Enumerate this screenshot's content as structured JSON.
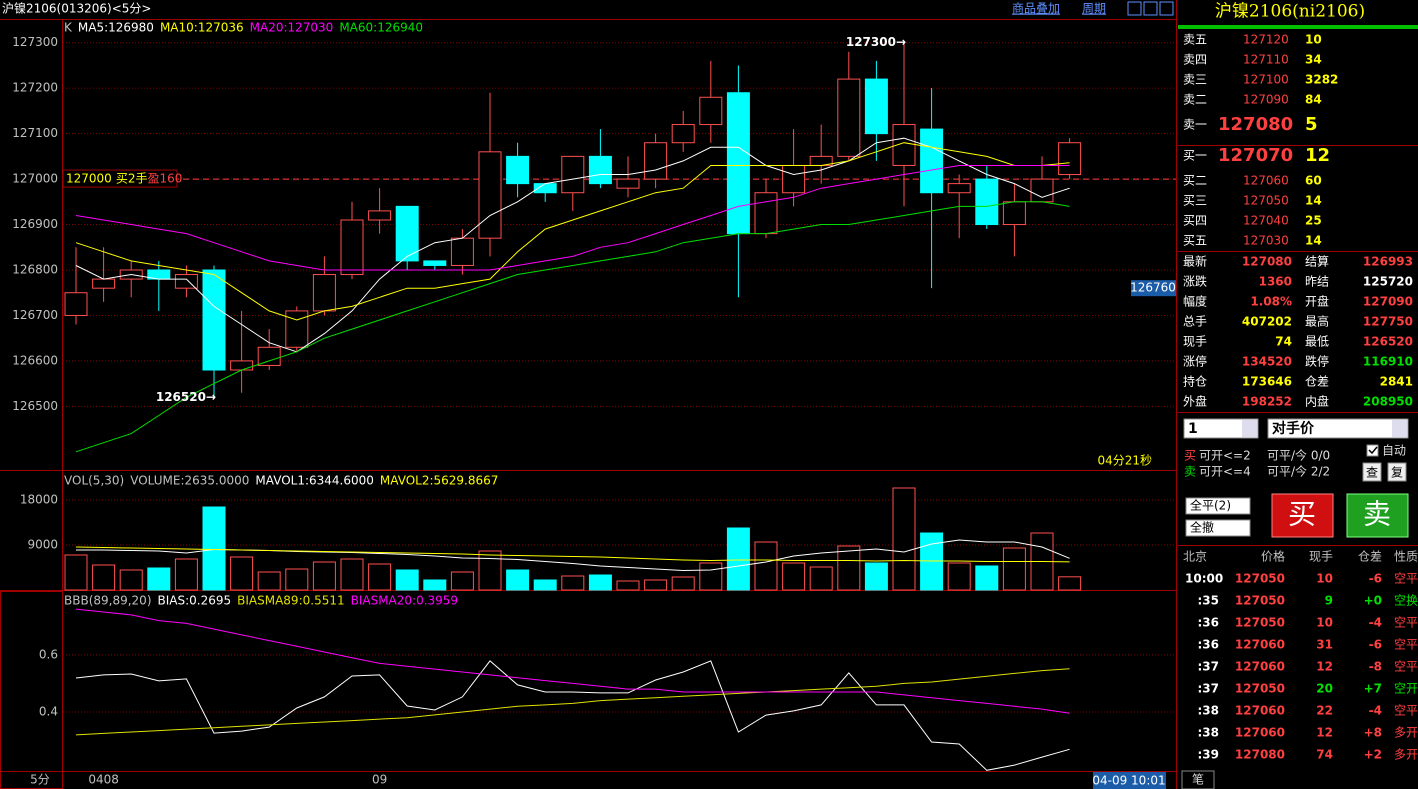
{
  "header": {
    "title": "沪镍2106(013206)<5分>",
    "overlay": "商品叠加",
    "period": "周期"
  },
  "kline": {
    "type": "candlestick",
    "label": "K",
    "up_color": "#ff5050",
    "down_color": "#00ffff",
    "open": [
      126700,
      126760,
      126780,
      126800,
      126760,
      126800,
      126580,
      126590,
      126630,
      126710,
      126790,
      126910,
      126940,
      126820,
      126810,
      126870,
      127050,
      126990,
      126970,
      127050,
      126980,
      127000,
      127080,
      127120,
      127190,
      126880,
      126970,
      127030,
      127050,
      127220,
      127030,
      127110,
      126970,
      127000,
      126900,
      126950,
      127010
    ],
    "high": [
      126850,
      126850,
      126820,
      126820,
      126810,
      126810,
      126710,
      126670,
      126720,
      126830,
      126950,
      126980,
      126940,
      126820,
      126890,
      127190,
      127080,
      126990,
      127050,
      127110,
      127050,
      127100,
      127150,
      127260,
      127250,
      127000,
      127110,
      127120,
      127280,
      127260,
      127300,
      127200,
      127010,
      127030,
      126990,
      127050,
      127090
    ],
    "low": [
      126680,
      126730,
      126740,
      126710,
      126740,
      126520,
      126530,
      126580,
      126620,
      126700,
      126780,
      126880,
      126800,
      126800,
      126790,
      126830,
      126960,
      126950,
      126930,
      126980,
      126960,
      126980,
      127060,
      127080,
      126740,
      126870,
      126940,
      126990,
      127040,
      127040,
      126940,
      126760,
      126870,
      126890,
      126830,
      126950,
      127000
    ],
    "close": [
      126750,
      126780,
      126800,
      126780,
      126790,
      126580,
      126600,
      126630,
      126710,
      126790,
      126910,
      126930,
      126820,
      126810,
      126870,
      127060,
      126990,
      126970,
      127050,
      126990,
      127000,
      127080,
      127120,
      127180,
      126880,
      126970,
      127030,
      127050,
      127220,
      127100,
      127120,
      126970,
      126990,
      126900,
      126950,
      127000,
      127080
    ],
    "ma": [
      {
        "name": "MA5:126980",
        "color": "#ffffff",
        "values": [
          126810,
          126780,
          126790,
          126780,
          126780,
          126720,
          126680,
          126640,
          126620,
          126660,
          126710,
          126780,
          126830,
          126860,
          126870,
          126920,
          126950,
          126990,
          127000,
          127010,
          127010,
          127020,
          127040,
          127070,
          127070,
          127030,
          127010,
          127020,
          127040,
          127080,
          127090,
          127070,
          127040,
          127010,
          126990,
          126960,
          126980
        ]
      },
      {
        "name": "MA10:127036",
        "color": "#ffff00",
        "values": [
          126860,
          126840,
          126820,
          126810,
          126800,
          126790,
          126750,
          126710,
          126690,
          126710,
          126720,
          126740,
          126760,
          126760,
          126770,
          126780,
          126840,
          126890,
          126910,
          126930,
          126950,
          126970,
          126980,
          127030,
          127030,
          127030,
          127030,
          127030,
          127040,
          127060,
          127080,
          127070,
          127060,
          127050,
          127030,
          127030,
          127036
        ]
      },
      {
        "name": "MA20:127030",
        "color": "#ff00ff",
        "values": [
          126920,
          126910,
          126900,
          126890,
          126880,
          126860,
          126840,
          126820,
          126810,
          126800,
          126800,
          126800,
          126800,
          126800,
          126800,
          126800,
          126810,
          126820,
          126830,
          126850,
          126860,
          126880,
          126900,
          126920,
          126940,
          126950,
          126960,
          126980,
          126990,
          127000,
          127010,
          127020,
          127030,
          127030,
          127030,
          127030,
          127030
        ]
      },
      {
        "name": "MA60:126940",
        "color": "#00e000",
        "values": [
          126400,
          126420,
          126440,
          126480,
          126520,
          126550,
          126580,
          126600,
          126620,
          126650,
          126670,
          126690,
          126710,
          126730,
          126750,
          126770,
          126790,
          126800,
          126810,
          126820,
          126830,
          126840,
          126860,
          126870,
          126880,
          126880,
          126890,
          126900,
          126900,
          126910,
          126920,
          126930,
          126940,
          126940,
          126950,
          126950,
          126940
        ]
      }
    ],
    "ylim": [
      126360,
      127350
    ],
    "yticks": [
      126500,
      126600,
      126700,
      126800,
      126900,
      127000,
      127100,
      127200,
      127300
    ],
    "high_marker": "127300→",
    "low_marker": "126520→",
    "position": {
      "price": 127000,
      "text": "买2手",
      "profit": "盈160"
    },
    "cursor_value": 126760,
    "timer": "04分21秒"
  },
  "volume": {
    "label": "VOL(5,30)",
    "volume_label": "VOLUME:2635.0000",
    "values": [
      7000,
      5000,
      4000,
      4400,
      6200,
      16600,
      6600,
      3600,
      4200,
      5600,
      6200,
      5200,
      4000,
      2000,
      3600,
      7800,
      4000,
      2000,
      2800,
      3000,
      1800,
      2000,
      2600,
      5400,
      12400,
      9600,
      5400,
      4600,
      8800,
      5400,
      20400,
      11400,
      5400,
      4800,
      8400,
      11400,
      2635
    ],
    "series": [
      {
        "name": "MAVOL1:6344.6000",
        "color": "#ffffff",
        "values": [
          8000,
          8000,
          7900,
          7800,
          7400,
          8100,
          8000,
          7900,
          7700,
          7600,
          7500,
          7300,
          7100,
          6800,
          6400,
          6300,
          6100,
          5700,
          5300,
          4800,
          4500,
          4200,
          3900,
          4000,
          4800,
          5600,
          6800,
          7400,
          7800,
          8200,
          7600,
          9200,
          10000,
          9600,
          9600,
          8600,
          6344.6
        ]
      },
      {
        "name": "MAVOL2:5629.8667",
        "color": "#ffff00",
        "values": [
          8600,
          8500,
          8400,
          8300,
          8200,
          8100,
          8000,
          7900,
          7800,
          7700,
          7600,
          7500,
          7400,
          7300,
          7200,
          7000,
          6900,
          6800,
          6700,
          6600,
          6400,
          6200,
          6000,
          5900,
          6000,
          6000,
          5900,
          5900,
          5900,
          5800,
          5900,
          5800,
          5800,
          5700,
          5700,
          5700,
          5629.8667
        ]
      }
    ],
    "ylim": [
      0,
      23600
    ],
    "yticks": [
      9000,
      18000
    ]
  },
  "bias": {
    "label": "BBB(89,89,20)",
    "series": [
      {
        "name": "BIAS:0.2695",
        "color": "#ffffff",
        "values": [
          0.519,
          0.53,
          0.533,
          0.509,
          0.516,
          0.326,
          0.333,
          0.347,
          0.414,
          0.453,
          0.526,
          0.53,
          0.421,
          0.407,
          0.453,
          0.579,
          0.495,
          0.47,
          0.47,
          0.467,
          0.467,
          0.512,
          0.54,
          0.579,
          0.33,
          0.389,
          0.404,
          0.425,
          0.537,
          0.425,
          0.425,
          0.295,
          0.288,
          0.196,
          0.214,
          0.242,
          0.2695
        ]
      },
      {
        "name": "BIASMA89:0.5511",
        "color": "#e0e000",
        "values": [
          0.32,
          0.325,
          0.33,
          0.335,
          0.34,
          0.345,
          0.35,
          0.355,
          0.36,
          0.365,
          0.37,
          0.375,
          0.38,
          0.39,
          0.4,
          0.41,
          0.42,
          0.425,
          0.43,
          0.44,
          0.445,
          0.45,
          0.455,
          0.46,
          0.465,
          0.47,
          0.475,
          0.48,
          0.485,
          0.49,
          0.5,
          0.505,
          0.515,
          0.525,
          0.535,
          0.545,
          0.5511
        ]
      },
      {
        "name": "BIASMA20:0.3959",
        "color": "#ff00ff",
        "values": [
          0.76,
          0.75,
          0.74,
          0.72,
          0.71,
          0.69,
          0.67,
          0.65,
          0.63,
          0.61,
          0.59,
          0.57,
          0.56,
          0.55,
          0.54,
          0.53,
          0.52,
          0.51,
          0.5,
          0.49,
          0.48,
          0.48,
          0.47,
          0.47,
          0.47,
          0.47,
          0.47,
          0.47,
          0.47,
          0.47,
          0.46,
          0.45,
          0.44,
          0.43,
          0.42,
          0.41,
          0.3959
        ]
      }
    ],
    "ylim": [
      0.19,
      0.82
    ],
    "yticks": [
      0.4,
      0.6
    ]
  },
  "xaxis": {
    "period": "5分",
    "labels": [
      null,
      "0408",
      null,
      null,
      null,
      null,
      null,
      null,
      null,
      null,
      null,
      "09",
      null,
      null,
      null,
      null,
      null,
      null,
      null,
      null,
      null,
      null,
      null,
      null,
      null,
      null,
      null,
      null,
      null,
      null,
      null,
      null,
      null,
      null,
      null,
      null,
      null
    ],
    "cursor_time": "04-09 10:01"
  },
  "quote": {
    "title": "沪镍2106(ni2106)",
    "asks": [
      {
        "label": "卖五",
        "price": 127120,
        "volume": 10
      },
      {
        "label": "卖四",
        "price": 127110,
        "volume": 34
      },
      {
        "label": "卖三",
        "price": 127100,
        "volume": 3282
      },
      {
        "label": "卖二",
        "price": 127090,
        "volume": 84
      },
      {
        "label": "卖一",
        "price": 127080,
        "volume": 5
      }
    ],
    "bids": [
      {
        "label": "买一",
        "price": 127070,
        "volume": 12
      },
      {
        "label": "买二",
        "price": 127060,
        "volume": 60
      },
      {
        "label": "买三",
        "price": 127050,
        "volume": 14
      },
      {
        "label": "买四",
        "price": 127040,
        "volume": 25
      },
      {
        "label": "买五",
        "price": 127030,
        "volume": 14
      }
    ],
    "stats": [
      [
        {
          "label": "最新",
          "value": 127080,
          "color": "#ff4040"
        },
        {
          "label": "结算",
          "value": 126993,
          "color": "#ff4040"
        }
      ],
      [
        {
          "label": "涨跌",
          "value": 1360,
          "color": "#ff4040"
        },
        {
          "label": "昨结",
          "value": 125720,
          "color": "#ffffff"
        }
      ],
      [
        {
          "label": "幅度",
          "value": 1.08,
          "value_label": "1.08%",
          "color": "#ff4040"
        },
        {
          "label": "开盘",
          "value": 127090,
          "color": "#ff4040"
        }
      ],
      [
        {
          "label": "总手",
          "value": 407202,
          "color": "#ffff00"
        },
        {
          "label": "最高",
          "value": 127750,
          "color": "#ff4040"
        }
      ],
      [
        {
          "label": "现手",
          "value": 74,
          "color": "#ffff00"
        },
        {
          "label": "最低",
          "value": 126520,
          "color": "#ff4040"
        }
      ],
      [
        {
          "label": "涨停",
          "value": 134520,
          "color": "#ff4040"
        },
        {
          "label": "跌停",
          "value": 116910,
          "color": "#00e000"
        }
      ],
      [
        {
          "label": "持仓",
          "value": 173646,
          "color": "#ffff00"
        },
        {
          "label": "仓差",
          "value": 2841,
          "color": "#ffff00"
        }
      ],
      [
        {
          "label": "外盘",
          "value": 198252,
          "color": "#ff4040"
        },
        {
          "label": "内盘",
          "value": 208950,
          "color": "#00e000"
        }
      ]
    ]
  },
  "trade": {
    "qty": "1",
    "price_type": "对手价",
    "auto": "自动",
    "buy": "买",
    "buy_open": "可开<=2",
    "sell": "卖",
    "sell_open": "可开<=4",
    "close_buy": "可平/今 0/0",
    "close_sell": "可平/今 2/2",
    "query": "查",
    "repeat": "复",
    "close_all": "全平(2)",
    "cancel_all": "全撤"
  },
  "ticks": {
    "headers": [
      "北京",
      "价格",
      "现手",
      "仓差",
      "性质"
    ],
    "tab": "笔",
    "rows": [
      {
        "time": "10:00",
        "price": 127050,
        "volume": 10,
        "oi": -6,
        "nature": "空平",
        "color": "#ff4040"
      },
      {
        "time": ":35",
        "price": 127050,
        "volume": 9,
        "oi": {
          "value": 0,
          "label": "+0"
        },
        "nature": "空换",
        "color": "#00e000"
      },
      {
        "time": ":36",
        "price": 127050,
        "volume": 10,
        "oi": -4,
        "nature": "空平",
        "color": "#ff4040"
      },
      {
        "time": ":36",
        "price": 127060,
        "volume": 31,
        "oi": -6,
        "nature": "空平",
        "color": "#ff4040"
      },
      {
        "time": ":37",
        "price": 127060,
        "volume": 12,
        "oi": -8,
        "nature": "空平",
        "color": "#ff4040"
      },
      {
        "time": ":37",
        "price": 127050,
        "volume": 20,
        "oi": {
          "value": 7,
          "label": "+7"
        },
        "nature": "空开",
        "color": "#00e000"
      },
      {
        "time": ":38",
        "price": 127060,
        "volume": 22,
        "oi": -4,
        "nature": "空平",
        "color": "#ff4040"
      },
      {
        "time": ":38",
        "price": 127060,
        "volume": 12,
        "oi": {
          "value": 8,
          "label": "+8"
        },
        "nature": "多开",
        "color": "#ff4040"
      },
      {
        "time": ":39",
        "price": 127080,
        "volume": 74,
        "oi": {
          "value": 2,
          "label": "+2"
        },
        "nature": "多开",
        "color": "#ff4040"
      }
    ]
  }
}
